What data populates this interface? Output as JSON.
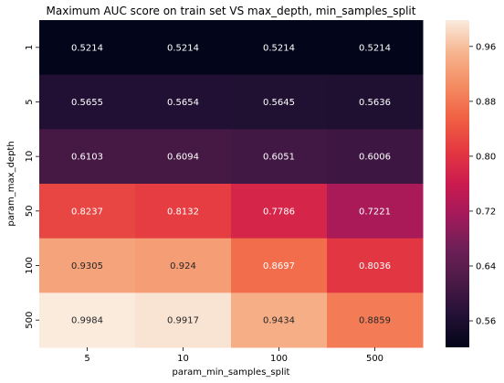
{
  "chart_data": {
    "type": "heatmap",
    "title": "Maximum AUC score on train set VS max_depth, min_samples_split",
    "xlabel": "param_min_samples_split",
    "ylabel": "param_max_depth",
    "x_categories": [
      "5",
      "10",
      "100",
      "500"
    ],
    "y_categories": [
      "1",
      "5",
      "10",
      "50",
      "100",
      "500"
    ],
    "values": [
      [
        0.5214,
        0.5214,
        0.5214,
        0.5214
      ],
      [
        0.5655,
        0.5654,
        0.5645,
        0.5636
      ],
      [
        0.6103,
        0.6094,
        0.6051,
        0.6006
      ],
      [
        0.8237,
        0.8132,
        0.7786,
        0.7221
      ],
      [
        0.9305,
        0.924,
        0.8697,
        0.8036
      ],
      [
        0.9984,
        0.9917,
        0.9434,
        0.8859
      ]
    ],
    "colorbar": {
      "range": [
        0.5214,
        0.9984
      ],
      "ticks": [
        "0.56",
        "0.64",
        "0.72",
        "0.80",
        "0.88",
        "0.96"
      ],
      "tick_values": [
        0.56,
        0.64,
        0.72,
        0.8,
        0.88,
        0.96
      ],
      "colormap": "rocket"
    }
  }
}
